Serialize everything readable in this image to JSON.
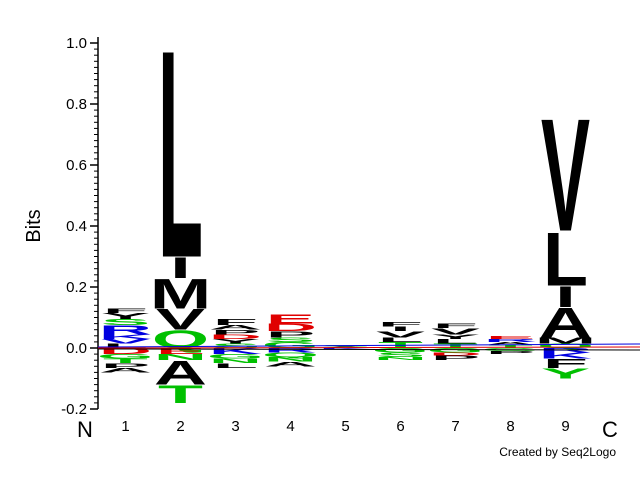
{
  "chart_data": {
    "type": "sequence-logo",
    "ylabel": "Bits",
    "ylim": [
      -0.2,
      1.0
    ],
    "yticks": [
      "1.0",
      "0.8",
      "0.6",
      "0.4",
      "0.2",
      "0.0",
      "-0.2"
    ],
    "positions": [
      "1",
      "2",
      "3",
      "4",
      "5",
      "6",
      "7",
      "8",
      "9"
    ],
    "n_terminal_label": "N",
    "c_terminal_label": "C",
    "credit": "Created by Seq2Logo",
    "colors": {
      "hydrophobic": "#000000",
      "polar": "#00c000",
      "basic": "#0000e0",
      "acidic": "#e00000"
    },
    "columns": [
      {
        "position": "1",
        "positive": [
          [
            "L",
            0.015,
            "#000000"
          ],
          [
            "V",
            0.015,
            "#0000e0"
          ],
          [
            "K",
            0.015,
            "#0000e0"
          ],
          [
            "R",
            0.03,
            "#0000e0"
          ],
          [
            "S",
            0.02,
            "#00c000"
          ],
          [
            "Y",
            0.02,
            "#000000"
          ],
          [
            "F",
            0.015,
            "#000000"
          ]
        ],
        "negative": [
          [
            "D",
            0.02,
            "#e00000"
          ],
          [
            "G",
            0.015,
            "#00c000"
          ],
          [
            "T",
            0.015,
            "#00c000"
          ],
          [
            "P",
            0.015,
            "#000000"
          ],
          [
            "A",
            0.015,
            "#000000"
          ]
        ]
      },
      {
        "position": "2",
        "positive": [
          [
            "Q",
            0.06,
            "#00c000"
          ],
          [
            "V",
            0.07,
            "#000000"
          ],
          [
            "M",
            0.1,
            "#000000"
          ],
          [
            "I",
            0.07,
            "#000000"
          ],
          [
            "L",
            0.7,
            "#000000"
          ]
        ],
        "negative": [
          [
            "E",
            0.02,
            "#e00000"
          ],
          [
            "N",
            0.02,
            "#00c000"
          ],
          [
            "A",
            0.08,
            "#000000"
          ],
          [
            "T",
            0.06,
            "#00c000"
          ]
        ]
      },
      {
        "position": "3",
        "positive": [
          [
            "S",
            0.015,
            "#00c000"
          ],
          [
            "Y",
            0.015,
            "#000000"
          ],
          [
            "D",
            0.015,
            "#e00000"
          ],
          [
            "P",
            0.015,
            "#000000"
          ],
          [
            "A",
            0.015,
            "#000000"
          ],
          [
            "F",
            0.02,
            "#000000"
          ]
        ],
        "negative": [
          [
            "K",
            0.02,
            "#0000e0"
          ],
          [
            "G",
            0.015,
            "#00c000"
          ],
          [
            "N",
            0.015,
            "#00c000"
          ],
          [
            "L",
            0.015,
            "#000000"
          ]
        ]
      },
      {
        "position": "4",
        "positive": [
          [
            "G",
            0.02,
            "#00c000"
          ],
          [
            "S",
            0.015,
            "#00c000"
          ],
          [
            "P",
            0.02,
            "#000000"
          ],
          [
            "D",
            0.025,
            "#e00000"
          ],
          [
            "E",
            0.03,
            "#e00000"
          ]
        ],
        "negative": [
          [
            "R",
            0.015,
            "#0000e0"
          ],
          [
            "Q",
            0.015,
            "#00c000"
          ],
          [
            "N",
            0.015,
            "#00c000"
          ],
          [
            "A",
            0.015,
            "#000000"
          ]
        ]
      },
      {
        "position": "5",
        "positive": [
          [
            "A",
            0.005,
            "#000000"
          ],
          [
            "S",
            0.005,
            "#00c000"
          ]
        ],
        "negative": [
          [
            "K",
            0.005,
            "#0000e0"
          ]
        ]
      },
      {
        "position": "6",
        "positive": [
          [
            "T",
            0.02,
            "#00c000"
          ],
          [
            "L",
            0.015,
            "#000000"
          ],
          [
            "V",
            0.02,
            "#000000"
          ],
          [
            "I",
            0.015,
            "#000000"
          ],
          [
            "F",
            0.015,
            "#000000"
          ]
        ],
        "negative": [
          [
            "G",
            0.015,
            "#00c000"
          ],
          [
            "S",
            0.015,
            "#00c000"
          ],
          [
            "N",
            0.01,
            "#00c000"
          ]
        ]
      },
      {
        "position": "7",
        "positive": [
          [
            "T",
            0.015,
            "#00c000"
          ],
          [
            "L",
            0.015,
            "#000000"
          ],
          [
            "Y",
            0.015,
            "#000000"
          ],
          [
            "V",
            0.02,
            "#000000"
          ],
          [
            "F",
            0.015,
            "#000000"
          ]
        ],
        "negative": [
          [
            "G",
            0.015,
            "#00c000"
          ],
          [
            "D",
            0.01,
            "#e00000"
          ],
          [
            "P",
            0.015,
            "#000000"
          ]
        ]
      },
      {
        "position": "8",
        "positive": [
          [
            "T",
            0.01,
            "#00c000"
          ],
          [
            "A",
            0.01,
            "#000000"
          ],
          [
            "R",
            0.01,
            "#0000e0"
          ],
          [
            "E",
            0.01,
            "#e00000"
          ]
        ],
        "negative": [
          [
            "G",
            0.01,
            "#00c000"
          ],
          [
            "P",
            0.01,
            "#000000"
          ]
        ]
      },
      {
        "position": "9",
        "positive": [
          [
            "Q",
            0.015,
            "#00c000"
          ],
          [
            "M",
            0.02,
            "#000000"
          ],
          [
            "A",
            0.1,
            "#000000"
          ],
          [
            "I",
            0.07,
            "#000000"
          ],
          [
            "L",
            0.18,
            "#000000"
          ],
          [
            "V",
            0.38,
            "#000000"
          ]
        ],
        "negative": [
          [
            "R",
            0.015,
            "#0000e0"
          ],
          [
            "K",
            0.02,
            "#0000e0"
          ],
          [
            "F",
            0.03,
            "#000000"
          ],
          [
            "Y",
            0.035,
            "#00c000"
          ]
        ]
      }
    ]
  }
}
